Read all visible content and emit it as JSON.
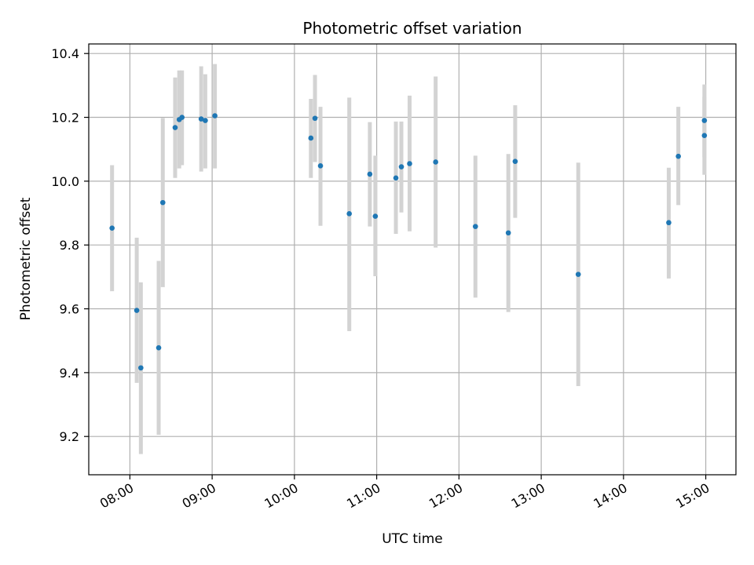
{
  "chart_data": {
    "type": "scatter",
    "title": "Photometric offset variation",
    "xlabel": "UTC time",
    "ylabel": "Photometric offset",
    "grid": true,
    "xlim": [
      "07:30",
      "15:22"
    ],
    "ylim": [
      9.08,
      10.43
    ],
    "x_ticks": [
      "08:00",
      "09:00",
      "10:00",
      "11:00",
      "12:00",
      "13:00",
      "14:00",
      "15:00"
    ],
    "y_ticks": [
      9.2,
      9.4,
      9.6,
      9.8,
      10.0,
      10.2,
      10.4
    ],
    "colors": {
      "point": "#1f77b4",
      "errorbar": "#d3d3d3",
      "grid": "#b0b0b0"
    },
    "points": [
      {
        "x": "07:47",
        "y": 9.853,
        "ylow": 9.655,
        "yhigh": 10.05
      },
      {
        "x": "08:05",
        "y": 9.595,
        "ylow": 9.368,
        "yhigh": 9.823
      },
      {
        "x": "08:08",
        "y": 9.415,
        "ylow": 9.145,
        "yhigh": 9.683
      },
      {
        "x": "08:21",
        "y": 9.478,
        "ylow": 9.205,
        "yhigh": 9.75
      },
      {
        "x": "08:24",
        "y": 9.933,
        "ylow": 9.668,
        "yhigh": 10.198
      },
      {
        "x": "08:33",
        "y": 10.168,
        "ylow": 10.01,
        "yhigh": 10.325
      },
      {
        "x": "08:36",
        "y": 10.193,
        "ylow": 10.04,
        "yhigh": 10.347
      },
      {
        "x": "08:38",
        "y": 10.2,
        "ylow": 10.05,
        "yhigh": 10.347
      },
      {
        "x": "08:52",
        "y": 10.195,
        "ylow": 10.03,
        "yhigh": 10.36
      },
      {
        "x": "08:55",
        "y": 10.19,
        "ylow": 10.04,
        "yhigh": 10.335
      },
      {
        "x": "09:02",
        "y": 10.205,
        "ylow": 10.04,
        "yhigh": 10.367
      },
      {
        "x": "10:12",
        "y": 10.135,
        "ylow": 10.01,
        "yhigh": 10.258
      },
      {
        "x": "10:15",
        "y": 10.197,
        "ylow": 10.06,
        "yhigh": 10.333
      },
      {
        "x": "10:19",
        "y": 10.048,
        "ylow": 9.86,
        "yhigh": 10.233
      },
      {
        "x": "10:40",
        "y": 9.898,
        "ylow": 9.53,
        "yhigh": 10.262
      },
      {
        "x": "10:55",
        "y": 10.022,
        "ylow": 9.858,
        "yhigh": 10.185
      },
      {
        "x": "10:59",
        "y": 9.89,
        "ylow": 9.702,
        "yhigh": 10.08
      },
      {
        "x": "11:14",
        "y": 10.01,
        "ylow": 9.835,
        "yhigh": 10.187
      },
      {
        "x": "11:18",
        "y": 10.045,
        "ylow": 9.902,
        "yhigh": 10.187
      },
      {
        "x": "11:24",
        "y": 10.055,
        "ylow": 9.843,
        "yhigh": 10.268
      },
      {
        "x": "11:43",
        "y": 10.06,
        "ylow": 9.792,
        "yhigh": 10.328
      },
      {
        "x": "12:12",
        "y": 9.858,
        "ylow": 9.635,
        "yhigh": 10.08
      },
      {
        "x": "12:36",
        "y": 9.838,
        "ylow": 9.59,
        "yhigh": 10.085
      },
      {
        "x": "12:41",
        "y": 10.062,
        "ylow": 9.885,
        "yhigh": 10.238
      },
      {
        "x": "13:27",
        "y": 9.708,
        "ylow": 9.358,
        "yhigh": 10.058
      },
      {
        "x": "14:33",
        "y": 9.87,
        "ylow": 9.695,
        "yhigh": 10.042
      },
      {
        "x": "14:40",
        "y": 10.078,
        "ylow": 9.925,
        "yhigh": 10.233
      },
      {
        "x": "14:59",
        "y": 10.19,
        "ylow": 10.075,
        "yhigh": 10.303
      },
      {
        "x": "14:59",
        "y": 10.143,
        "ylow": 10.02,
        "yhigh": 10.265
      }
    ]
  }
}
